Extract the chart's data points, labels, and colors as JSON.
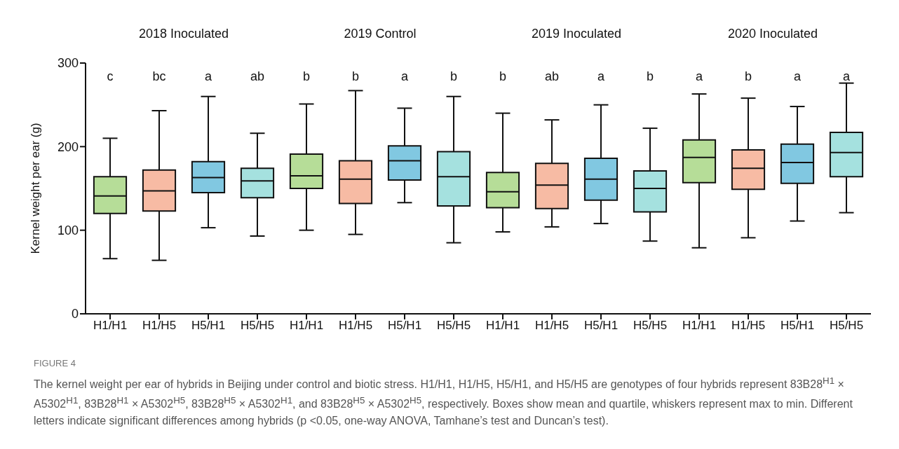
{
  "chart_data": [
    {
      "type": "box",
      "title": "2018 Inoculated",
      "ylabel": "Kernel weight per ear (g)",
      "categories": [
        "H1/H1",
        "H1/H5",
        "H5/H1",
        "H5/H5"
      ],
      "colors": [
        "#7ac143",
        "#f0845a",
        "#1a9bc9",
        "#5bc8c4"
      ],
      "boxes": [
        {
          "low": 66,
          "q1": 120,
          "median": 141,
          "q3": 164,
          "high": 210
        },
        {
          "low": 64,
          "q1": 123,
          "median": 147,
          "q3": 172,
          "high": 243
        },
        {
          "low": 103,
          "q1": 145,
          "median": 163,
          "q3": 182,
          "high": 260
        },
        {
          "low": 93,
          "q1": 139,
          "median": 159,
          "q3": 174,
          "high": 216
        }
      ],
      "ylim": [
        0,
        300
      ],
      "yticks": [
        0,
        100,
        200,
        300
      ],
      "annotations": [
        "c",
        "bc",
        "a",
        "ab",
        "FIGURE 4",
        "The kernel weight per ear of hybrids in Beijing under control and biotic stress. H1/H1, H1/H5, H5/H1, and H5/H5 are genotypes of four hybrids represent 83B28$^{H1}$ × A5302$^{H1}$, 83B28$^{H1}$ × A5302$^{H5}$, 83B28$^{H5}$ × A5302$^{H1}$, and 83B28$^{H5}$ × A5302$^{H5}$, respectively. Boxes show mean and quartile, whiskers represent max to min. Different letters indicate significant differences among hybrids (p <0.05, one-way ANOVA, Tamhane’s test and Duncan’s test)."
      ]
    },
    {
      "type": "box",
      "title": "2019 Control",
      "categories": [
        "H1/H1",
        "H1/H5",
        "H5/H1",
        "H5/H5"
      ],
      "colors": [
        "#7ac143",
        "#f0845a",
        "#1a9bc9",
        "#5bc8c4"
      ],
      "boxes": [
        {
          "low": 100,
          "q1": 150,
          "median": 165,
          "q3": 191,
          "high": 251
        },
        {
          "low": 95,
          "q1": 132,
          "median": 161,
          "q3": 183,
          "high": 267
        },
        {
          "low": 133,
          "q1": 160,
          "median": 183,
          "q3": 201,
          "high": 246
        },
        {
          "low": 85,
          "q1": 129,
          "median": 164,
          "q3": 194,
          "high": 260
        }
      ],
      "ylim": [
        0,
        300
      ],
      "yticks": [
        0,
        100,
        200,
        300
      ],
      "tick_labels": "x",
      "annotations": [
        "b",
        "b",
        "a",
        "b"
      ]
    },
    {
      "type": "box",
      "title": "2019 Inoculated",
      "categories": [
        "H1/H1",
        "H1/H5",
        "H5/H1",
        "H5/H5"
      ],
      "colors": [
        "#7ac143",
        "#f0845a",
        "#1a9bc9",
        "#5bc8c4"
      ],
      "boxes": [
        {
          "low": 98,
          "q1": 127,
          "median": 146,
          "q3": 169,
          "high": 240
        },
        {
          "low": 104,
          "q1": 126,
          "median": 154,
          "q3": 180,
          "high": 232
        },
        {
          "low": 108,
          "q1": 136,
          "median": 161,
          "q3": 186,
          "high": 250
        },
        {
          "low": 87,
          "q1": 122,
          "median": 150,
          "q3": 171,
          "high": 222
        }
      ],
      "ylim": [
        0,
        300
      ],
      "yticks": [
        0,
        100,
        200,
        300
      ],
      "tick_labels": "x",
      "annotations": [
        "b",
        "ab",
        "a",
        "b"
      ]
    },
    {
      "type": "box",
      "title": "2020 Inoculated",
      "categories": [
        "H1/H1",
        "H1/H5",
        "H5/H1",
        "H5/H5"
      ],
      "colors": [
        "#7ac143",
        "#f0845a",
        "#1a9bc9",
        "#5bc8c4"
      ],
      "boxes": [
        {
          "low": 79,
          "q1": 157,
          "median": 187,
          "q3": 208,
          "high": 263
        },
        {
          "low": 91,
          "q1": 149,
          "median": 174,
          "q3": 196,
          "high": 258
        },
        {
          "low": 111,
          "q1": 156,
          "median": 181,
          "q3": 203,
          "high": 248
        },
        {
          "low": 121,
          "q1": 164,
          "median": 193,
          "q3": 217,
          "high": 276
        }
      ],
      "ylim": [
        0,
        300
      ],
      "yticks": [
        0,
        100,
        200,
        300
      ],
      "tick_labels": "x",
      "annotations": [
        "a",
        "b",
        "a",
        "a"
      ]
    }
  ]
}
